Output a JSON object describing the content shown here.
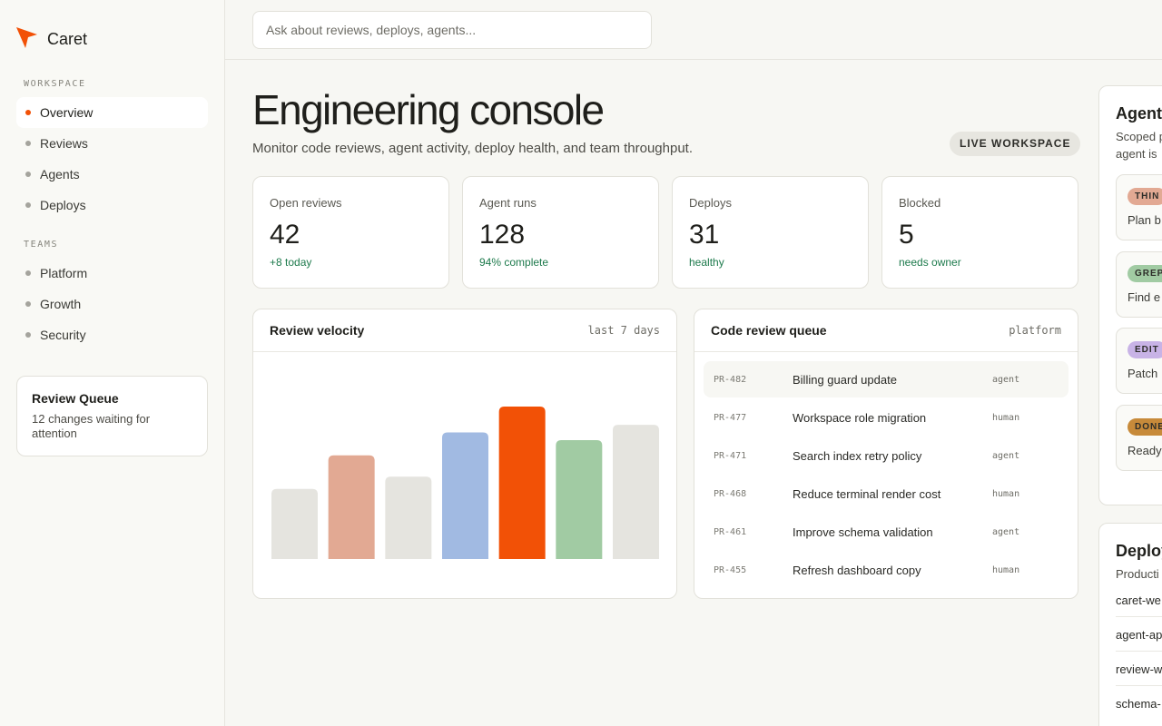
{
  "app": {
    "name": "Caret",
    "accent": "#f25106"
  },
  "search": {
    "placeholder": "Ask about reviews, deploys, agents..."
  },
  "sidebar": {
    "workspace_label": "WORKSPACE",
    "workspace_items": [
      {
        "label": "Overview",
        "active": true
      },
      {
        "label": "Reviews"
      },
      {
        "label": "Agents"
      },
      {
        "label": "Deploys"
      }
    ],
    "teams_label": "TEAMS",
    "team_items": [
      {
        "label": "Platform"
      },
      {
        "label": "Growth"
      },
      {
        "label": "Security"
      }
    ],
    "queue_card": {
      "title": "Review Queue",
      "description": "12 changes waiting for attention"
    }
  },
  "header": {
    "title": "Engineering console",
    "subtitle": "Monitor code reviews, agent activity, deploy health, and team throughput.",
    "badge": "LIVE WORKSPACE"
  },
  "stats": [
    {
      "label": "Open reviews",
      "value": "42",
      "note": "+8 today"
    },
    {
      "label": "Agent runs",
      "value": "128",
      "note": "94% complete"
    },
    {
      "label": "Deploys",
      "value": "31",
      "note": "healthy"
    },
    {
      "label": "Blocked",
      "value": "5",
      "note": "needs owner"
    }
  ],
  "velocity": {
    "title": "Review velocity",
    "meta": "last 7 days"
  },
  "chart_data": {
    "type": "bar",
    "values": [
      46,
      68,
      54,
      83,
      100,
      78,
      88
    ],
    "colors": [
      "#e5e4df",
      "#e2a993",
      "#e5e4df",
      "#a1bae2",
      "#f25106",
      "#a1cba3",
      "#e5e4df"
    ],
    "ylim": [
      0,
      100
    ],
    "grid": false
  },
  "review_queue": {
    "title": "Code review queue",
    "meta": "platform",
    "rows": [
      {
        "id": "PR-482",
        "title": "Billing guard update",
        "type": "agent"
      },
      {
        "id": "PR-477",
        "title": "Workspace role migration",
        "type": "human"
      },
      {
        "id": "PR-471",
        "title": "Search index retry policy",
        "type": "agent"
      },
      {
        "id": "PR-468",
        "title": "Reduce terminal render cost",
        "type": "human"
      },
      {
        "id": "PR-461",
        "title": "Improve schema validation",
        "type": "agent"
      },
      {
        "id": "PR-455",
        "title": "Refresh dashboard copy",
        "type": "human"
      }
    ]
  },
  "agents_panel": {
    "title": "Agent",
    "desc_line1": "Scoped p",
    "desc_line2": "agent is",
    "cards": [
      {
        "tag": "THIN",
        "desc": "Plan b",
        "color": "#e2a993"
      },
      {
        "tag": "GREP",
        "desc": "Find e",
        "color": "#a1cba3"
      },
      {
        "tag": "EDIT",
        "desc": "Patch",
        "color": "#c8b3e6"
      },
      {
        "tag": "DONE",
        "desc": "Ready",
        "color": "#c78a3a"
      }
    ]
  },
  "deploys_panel": {
    "title": "Deploy",
    "desc": "Producti",
    "items": [
      "caret-we",
      "agent-ap",
      "review-w",
      "schema-"
    ]
  }
}
